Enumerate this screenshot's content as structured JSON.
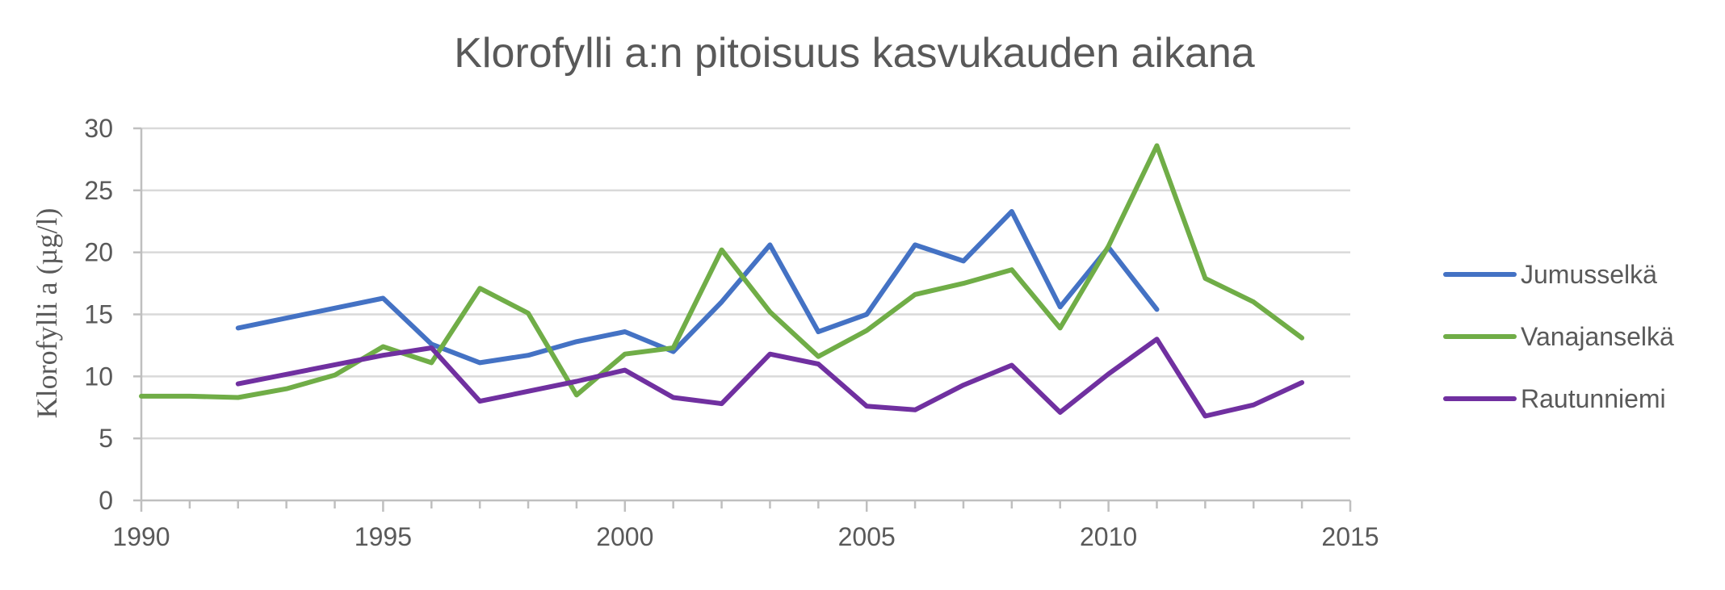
{
  "chart_data": {
    "type": "line",
    "title": "Klorofylli a:n pitoisuus kasvukauden aikana",
    "xlabel": "",
    "ylabel": "Klorofylli a (µg/l)",
    "xlim": [
      1990,
      2015
    ],
    "ylim": [
      0,
      30
    ],
    "x_ticks": [
      1990,
      1995,
      2000,
      2005,
      2010,
      2015
    ],
    "y_ticks": [
      0,
      5,
      10,
      15,
      20,
      25,
      30
    ],
    "grid": true,
    "legend_position": "right",
    "series": [
      {
        "name": "Jumusselkä",
        "color": "#4472C4",
        "points": [
          [
            1992,
            13.9
          ],
          [
            1995,
            16.3
          ],
          [
            1996,
            12.6
          ],
          [
            1997,
            11.1
          ],
          [
            1998,
            11.7
          ],
          [
            1999,
            12.8
          ],
          [
            2000,
            13.6
          ],
          [
            2001,
            12.0
          ],
          [
            2002,
            16.0
          ],
          [
            2003,
            20.6
          ],
          [
            2004,
            13.6
          ],
          [
            2005,
            15.0
          ],
          [
            2006,
            20.6
          ],
          [
            2007,
            19.3
          ],
          [
            2008,
            23.3
          ],
          [
            2009,
            15.6
          ],
          [
            2010,
            20.4
          ],
          [
            2011,
            15.4
          ]
        ]
      },
      {
        "name": "Vanajanselkä",
        "color": "#70AD47",
        "points": [
          [
            1990,
            8.4
          ],
          [
            1991,
            8.4
          ],
          [
            1992,
            8.3
          ],
          [
            1993,
            9.0
          ],
          [
            1994,
            10.1
          ],
          [
            1995,
            12.4
          ],
          [
            1996,
            11.1
          ],
          [
            1997,
            17.1
          ],
          [
            1998,
            15.1
          ],
          [
            1999,
            8.5
          ],
          [
            2000,
            11.8
          ],
          [
            2001,
            12.3
          ],
          [
            2002,
            20.2
          ],
          [
            2003,
            15.2
          ],
          [
            2004,
            11.6
          ],
          [
            2005,
            13.7
          ],
          [
            2006,
            16.6
          ],
          [
            2007,
            17.5
          ],
          [
            2008,
            18.6
          ],
          [
            2009,
            13.9
          ],
          [
            2010,
            20.5
          ],
          [
            2011,
            28.6
          ],
          [
            2012,
            17.9
          ],
          [
            2013,
            16.0
          ],
          [
            2014,
            13.1
          ]
        ]
      },
      {
        "name": "Rautunniemi",
        "color": "#7030A0",
        "points": [
          [
            1992,
            9.4
          ],
          [
            1995,
            11.7
          ],
          [
            1996,
            12.3
          ],
          [
            1997,
            8.0
          ],
          [
            1999,
            9.6
          ],
          [
            2000,
            10.5
          ],
          [
            2001,
            8.3
          ],
          [
            2002,
            7.8
          ],
          [
            2003,
            11.8
          ],
          [
            2004,
            11.0
          ],
          [
            2005,
            7.6
          ],
          [
            2006,
            7.3
          ],
          [
            2007,
            9.3
          ],
          [
            2008,
            10.9
          ],
          [
            2009,
            7.1
          ],
          [
            2010,
            10.2
          ],
          [
            2011,
            13.0
          ],
          [
            2012,
            6.8
          ],
          [
            2013,
            7.7
          ],
          [
            2014,
            9.5
          ]
        ]
      }
    ]
  }
}
